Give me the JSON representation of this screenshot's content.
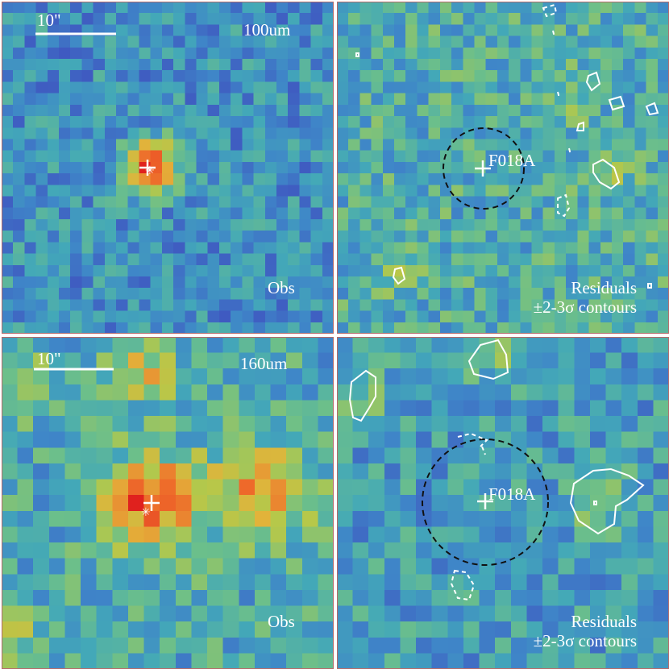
{
  "panels": [
    {
      "id": "p1",
      "scale_label": "10\"",
      "band_label": "100um",
      "map_label": "Obs",
      "pixels": 29,
      "seed": 11,
      "kind": "obs100"
    },
    {
      "id": "p2",
      "source_label": "F018A",
      "map_label_line1": "Residuals",
      "map_label_line2": "±2-3σ contours",
      "pixels": 29,
      "seed": 23,
      "kind": "res100"
    },
    {
      "id": "p3",
      "scale_label": "10\"",
      "band_label": "160um",
      "map_label": "Obs",
      "pixels": 21,
      "seed": 37,
      "kind": "obs160"
    },
    {
      "id": "p4",
      "source_label": "F018A",
      "map_label_line1": "Residuals",
      "map_label_line2": "±2-3σ contours",
      "pixels": 21,
      "seed": 51,
      "kind": "res160"
    }
  ],
  "colors": {
    "colormap": [
      "#3b1f8f",
      "#3f4fbf",
      "#3f86c8",
      "#43a8b8",
      "#6cbf8a",
      "#b5c84a",
      "#e3b23a",
      "#ee6a2a",
      "#e0201e"
    ],
    "overlay": "#ffffff",
    "circle": "#111111"
  }
}
